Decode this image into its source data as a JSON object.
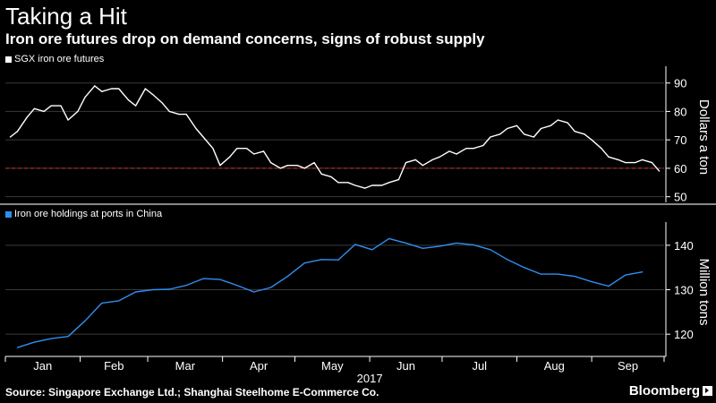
{
  "header": {
    "title": "Taking a Hit",
    "subtitle": "Iron ore futures drop on demand concerns, signs of robust supply"
  },
  "footer": {
    "source": "Source: Singapore Exchange Ltd.; Shanghai Steelhome E-Commerce Co.",
    "brand": "Bloomberg"
  },
  "colors": {
    "futures": "#ffffff",
    "holdings": "#2f8ff0",
    "reference": "#d62a2a",
    "background": "#000000"
  },
  "chart_data": [
    {
      "type": "line",
      "series": [
        {
          "name": "SGX iron ore futures",
          "x": [
            "2017-01-03",
            "2017-01-06",
            "2017-01-10",
            "2017-01-13",
            "2017-01-17",
            "2017-01-20",
            "2017-01-24",
            "2017-01-27",
            "2017-01-31",
            "2017-02-03",
            "2017-02-07",
            "2017-02-10",
            "2017-02-14",
            "2017-02-17",
            "2017-02-21",
            "2017-02-24",
            "2017-02-28",
            "2017-03-03",
            "2017-03-07",
            "2017-03-10",
            "2017-03-14",
            "2017-03-17",
            "2017-03-21",
            "2017-03-24",
            "2017-03-28",
            "2017-03-31",
            "2017-04-04",
            "2017-04-07",
            "2017-04-11",
            "2017-04-14",
            "2017-04-18",
            "2017-04-21",
            "2017-04-25",
            "2017-04-28",
            "2017-05-02",
            "2017-05-05",
            "2017-05-09",
            "2017-05-12",
            "2017-05-16",
            "2017-05-19",
            "2017-05-23",
            "2017-05-26",
            "2017-05-30",
            "2017-06-02",
            "2017-06-06",
            "2017-06-09",
            "2017-06-13",
            "2017-06-16",
            "2017-06-20",
            "2017-06-23",
            "2017-06-27",
            "2017-06-30",
            "2017-07-04",
            "2017-07-07",
            "2017-07-11",
            "2017-07-14",
            "2017-07-18",
            "2017-07-21",
            "2017-07-25",
            "2017-07-28",
            "2017-08-01",
            "2017-08-04",
            "2017-08-08",
            "2017-08-11",
            "2017-08-15",
            "2017-08-18",
            "2017-08-22",
            "2017-08-25",
            "2017-08-29",
            "2017-09-01",
            "2017-09-05",
            "2017-09-08",
            "2017-09-12",
            "2017-09-15",
            "2017-09-19",
            "2017-09-22",
            "2017-09-26",
            "2017-09-29"
          ],
          "values": [
            71,
            73,
            78,
            81,
            80,
            82,
            82,
            77,
            80,
            85,
            89,
            87,
            88,
            88,
            84,
            82,
            88,
            86,
            83,
            80,
            79,
            79,
            74,
            71,
            67,
            61,
            64,
            67,
            67,
            65,
            66,
            62,
            60,
            61,
            61,
            60,
            62,
            58,
            57,
            55,
            55,
            54,
            53,
            54,
            54,
            55,
            56,
            62,
            63,
            61,
            63,
            64,
            66,
            65,
            67,
            67,
            68,
            71,
            72,
            74,
            75,
            72,
            71,
            74,
            75,
            77,
            76,
            73,
            72,
            70,
            67,
            64,
            63,
            62,
            62,
            63,
            62,
            59
          ]
        }
      ],
      "ylabel": "Dollars a ton",
      "ylim": [
        48,
        94
      ],
      "yticks": [
        50,
        60,
        70,
        80,
        90
      ],
      "reference_line": 60
    },
    {
      "type": "line",
      "series": [
        {
          "name": "Iron ore holdings at ports in China",
          "x": [
            "2017-01-06",
            "2017-01-13",
            "2017-01-20",
            "2017-01-27",
            "2017-02-03",
            "2017-02-10",
            "2017-02-17",
            "2017-02-24",
            "2017-03-03",
            "2017-03-10",
            "2017-03-17",
            "2017-03-24",
            "2017-03-31",
            "2017-04-07",
            "2017-04-14",
            "2017-04-21",
            "2017-04-28",
            "2017-05-05",
            "2017-05-12",
            "2017-05-19",
            "2017-05-26",
            "2017-06-02",
            "2017-06-09",
            "2017-06-16",
            "2017-06-23",
            "2017-06-30",
            "2017-07-07",
            "2017-07-14",
            "2017-07-21",
            "2017-07-28",
            "2017-08-04",
            "2017-08-11",
            "2017-08-18",
            "2017-08-25",
            "2017-09-01",
            "2017-09-08",
            "2017-09-15",
            "2017-09-22"
          ],
          "values": [
            117,
            118.2,
            119,
            119.5,
            123,
            127,
            127.5,
            129.5,
            130,
            130.1,
            131,
            132.5,
            132.3,
            131,
            129.5,
            130.5,
            133,
            136,
            136.8,
            136.7,
            140.2,
            139,
            141.5,
            140.5,
            139.3,
            139.8,
            140.5,
            140.1,
            139,
            136.8,
            135,
            133.5,
            133.5,
            133,
            131.8,
            130.8,
            133.3,
            134
          ]
        }
      ],
      "ylabel": "Million tons",
      "ylim": [
        115,
        144
      ],
      "yticks": [
        120,
        130,
        140
      ]
    }
  ],
  "x_axis": {
    "months": [
      "Jan",
      "Feb",
      "Mar",
      "Apr",
      "May",
      "Jun",
      "Jul",
      "Aug",
      "Sep"
    ],
    "year_label": "2017"
  }
}
